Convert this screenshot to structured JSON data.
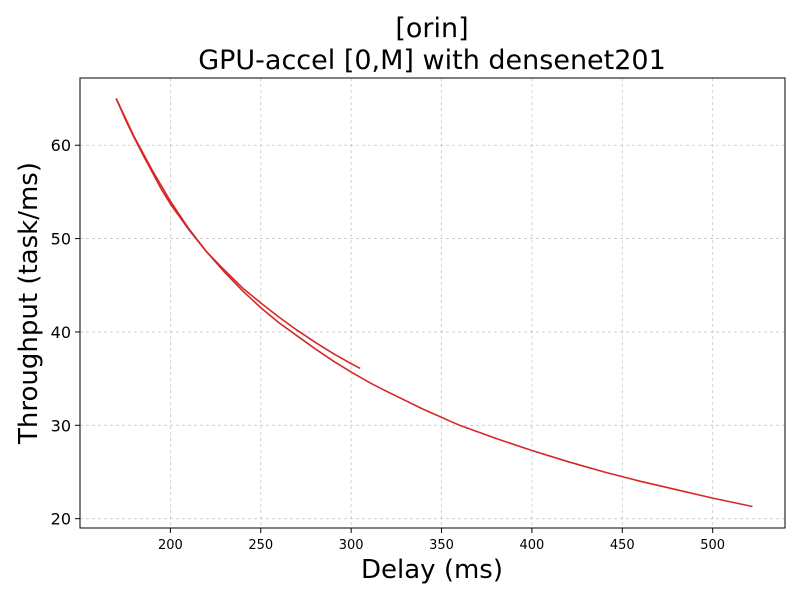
{
  "chart_data": {
    "type": "line",
    "title_line1": "[orin]",
    "title_line2": "GPU-accel [0,M] with densenet201",
    "xlabel": "Delay (ms)",
    "ylabel": "Throughput (task/ms)",
    "xlim": [
      150,
      540
    ],
    "ylim": [
      19,
      67.2
    ],
    "xticks": [
      200,
      250,
      300,
      350,
      400,
      450,
      500
    ],
    "yticks": [
      20,
      30,
      40,
      50,
      60
    ],
    "grid": true,
    "color": "#d62728",
    "series": [
      {
        "x": [
          170,
          175,
          180,
          185,
          190,
          195,
          200,
          210,
          220,
          230,
          240,
          250,
          260,
          270,
          280,
          290,
          300,
          305
        ],
        "y": [
          65.0,
          62.8,
          60.8,
          58.9,
          57.1,
          55.3,
          53.7,
          51.0,
          48.6,
          46.6,
          44.7,
          43.1,
          41.6,
          40.2,
          38.9,
          37.7,
          36.6,
          36.1
        ]
      },
      {
        "x": [
          170,
          180,
          190,
          200,
          210,
          220,
          230,
          240,
          250,
          260,
          270,
          280,
          290,
          300,
          310,
          320,
          340,
          360,
          380,
          400,
          420,
          440,
          460,
          480,
          500,
          522
        ],
        "y": [
          65.0,
          60.9,
          57.3,
          54.0,
          51.1,
          48.6,
          46.4,
          44.4,
          42.6,
          41.0,
          39.6,
          38.2,
          36.9,
          35.7,
          34.6,
          33.6,
          31.7,
          30.0,
          28.6,
          27.3,
          26.1,
          25.0,
          24.0,
          23.1,
          22.2,
          21.3
        ]
      }
    ]
  }
}
